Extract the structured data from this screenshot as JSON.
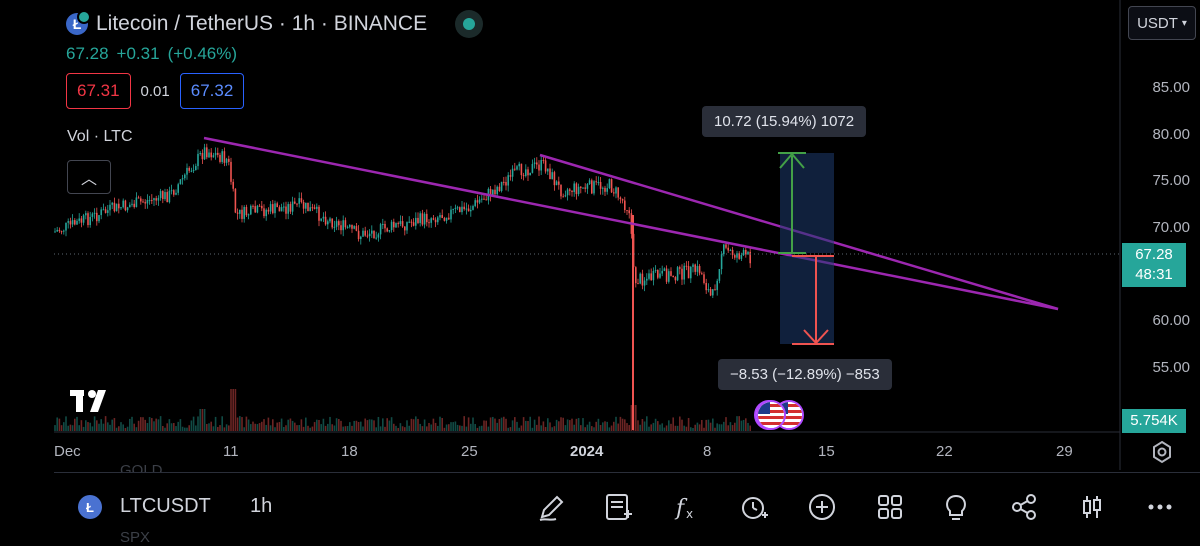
{
  "header": {
    "title": "Litecoin / TetherUS · 1h · BINANCE",
    "logo_letter": "Ł",
    "last_price": "67.28",
    "change": "+0.31",
    "change_pct": "(+0.46%)",
    "bid": "67.31",
    "spread": "0.01",
    "ask": "67.32",
    "volume_label": "Vol · LTC",
    "currency": "USDT"
  },
  "price_axis": {
    "labels": [
      "85.00",
      "80.00",
      "75.00",
      "70.00",
      "60.00",
      "55.00"
    ],
    "current_price": "67.28",
    "countdown": "48:31",
    "volume_value": "5.754K"
  },
  "time_axis": {
    "labels": [
      "Dec",
      "11",
      "18",
      "25",
      "2024",
      "8",
      "15",
      "22",
      "29"
    ]
  },
  "measurements": {
    "up": "10.72 (15.94%) 1072",
    "down": "−8.53 (−12.89%) −853"
  },
  "ghost_labels": {
    "top": "GOLD",
    "bottom": "SPX"
  },
  "bottom_bar": {
    "symbol": "LTCUSDT",
    "timeframe": "1h",
    "tools": [
      "draw-icon",
      "notes-icon",
      "indicators-icon",
      "alert-icon",
      "add-icon",
      "layouts-icon",
      "ideas-icon",
      "share-icon",
      "chart-type-icon",
      "more-icon"
    ]
  },
  "colors": {
    "up": "#26a69a",
    "down": "#ef5350",
    "trendline": "#9c27b0",
    "accent": "#2962ff"
  }
}
